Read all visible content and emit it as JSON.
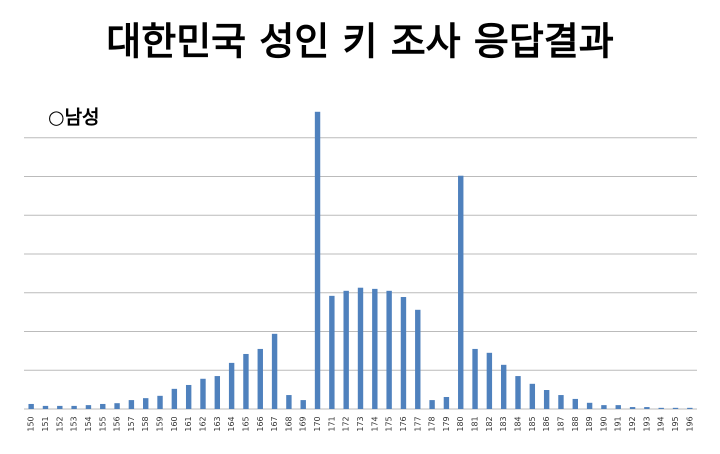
{
  "chart_data": {
    "type": "bar",
    "title": "대한민국 성인 키 조사 응답결과",
    "subtitle": "○남성",
    "categories": [
      "150",
      "151",
      "152",
      "153",
      "154",
      "155",
      "156",
      "157",
      "158",
      "159",
      "160",
      "161",
      "162",
      "163",
      "164",
      "165",
      "166",
      "167",
      "168",
      "169",
      "170",
      "171",
      "172",
      "173",
      "174",
      "175",
      "176",
      "177",
      "178",
      "179",
      "180",
      "181",
      "182",
      "183",
      "184",
      "185",
      "186",
      "187",
      "188",
      "189",
      "190",
      "191",
      "192",
      "193",
      "194",
      "195",
      "196"
    ],
    "values": [
      0.13,
      0.08,
      0.08,
      0.08,
      0.1,
      0.13,
      0.15,
      0.23,
      0.28,
      0.34,
      0.52,
      0.62,
      0.78,
      0.85,
      1.19,
      1.42,
      1.55,
      1.94,
      0.36,
      0.23,
      7.67,
      2.92,
      3.05,
      3.13,
      3.1,
      3.05,
      2.89,
      2.56,
      0.23,
      0.31,
      6.02,
      1.55,
      1.45,
      1.14,
      0.85,
      0.65,
      0.49,
      0.36,
      0.26,
      0.16,
      0.1,
      0.1,
      0.05,
      0.05,
      0.03,
      0.03,
      0.03
    ],
    "color": "#4f81bd",
    "ylim": [
      0,
      8
    ],
    "yticks": [
      0,
      1,
      2,
      3,
      4,
      5,
      6,
      7
    ],
    "grid": true
  }
}
